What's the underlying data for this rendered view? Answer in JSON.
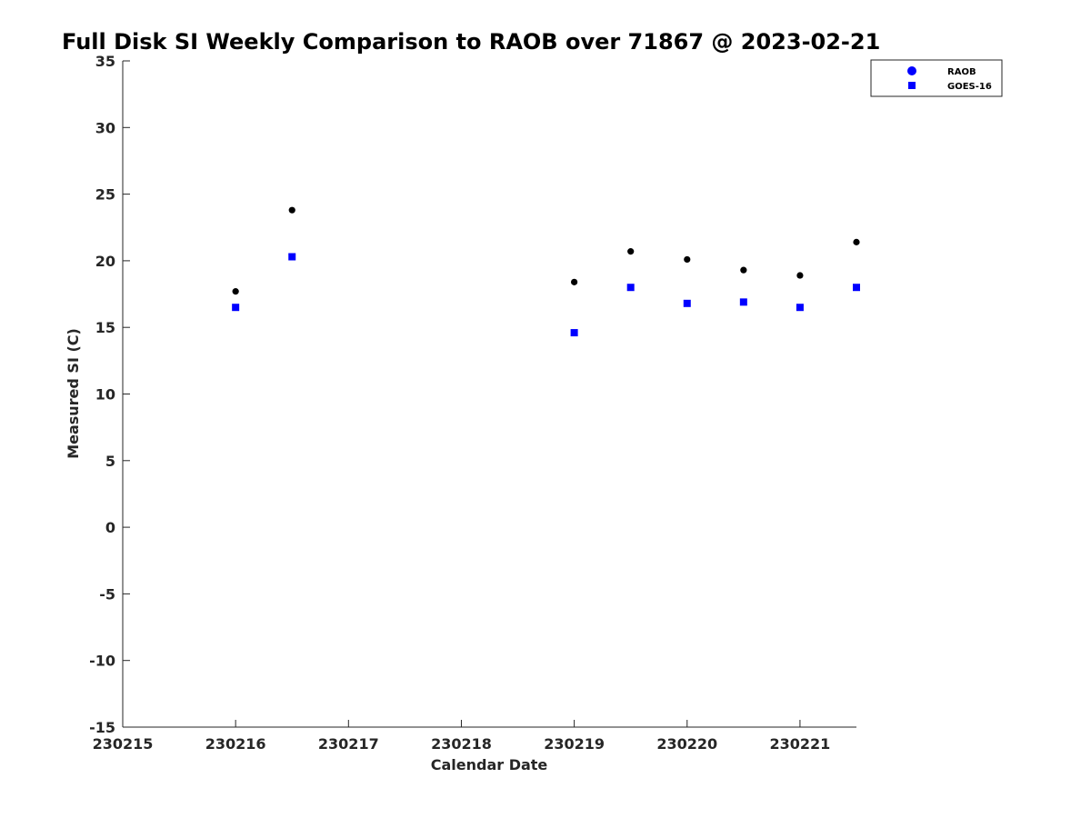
{
  "chart_data": {
    "type": "scatter",
    "title": "Full Disk SI Weekly Comparison to RAOB over 71867 @ 2023-02-21",
    "xlabel": "Calendar Date",
    "ylabel": "Measured SI (C)",
    "xlim": [
      0,
      6.5
    ],
    "ylim": [
      -15,
      35
    ],
    "x_ticks": [
      0,
      1,
      2,
      3,
      4,
      5,
      6
    ],
    "x_tick_labels": [
      "230215",
      "230216",
      "230217",
      "230218",
      "230219",
      "230220",
      "230221"
    ],
    "y_ticks": [
      35,
      30,
      25,
      20,
      15,
      10,
      5,
      0,
      -5,
      -10,
      -15
    ],
    "grid": false,
    "legend_position": "top-right",
    "series": [
      {
        "name": "RAOB",
        "marker": "circle",
        "color": "#000000",
        "legend_color": "#0000ff",
        "x": [
          1,
          1.5,
          4,
          4.5,
          5,
          5.5,
          6,
          6.5
        ],
        "x_dates": [
          "230216 00Z",
          "230216 12Z",
          "230219 00Z",
          "230219 12Z",
          "230220 00Z",
          "230220 12Z",
          "230221 00Z",
          "230221 12Z"
        ],
        "values": [
          17.7,
          23.8,
          18.4,
          20.7,
          20.1,
          19.3,
          18.9,
          21.4
        ]
      },
      {
        "name": "GOES-16",
        "marker": "square",
        "color": "#0000ff",
        "x": [
          1,
          1.5,
          4,
          4.5,
          5,
          5.5,
          6,
          6.5
        ],
        "x_dates": [
          "230216 00Z",
          "230216 12Z",
          "230219 00Z",
          "230219 12Z",
          "230220 00Z",
          "230220 12Z",
          "230221 00Z",
          "230221 12Z"
        ],
        "values": [
          16.5,
          20.3,
          14.6,
          18.0,
          16.8,
          16.9,
          16.5,
          18.0
        ]
      }
    ]
  }
}
